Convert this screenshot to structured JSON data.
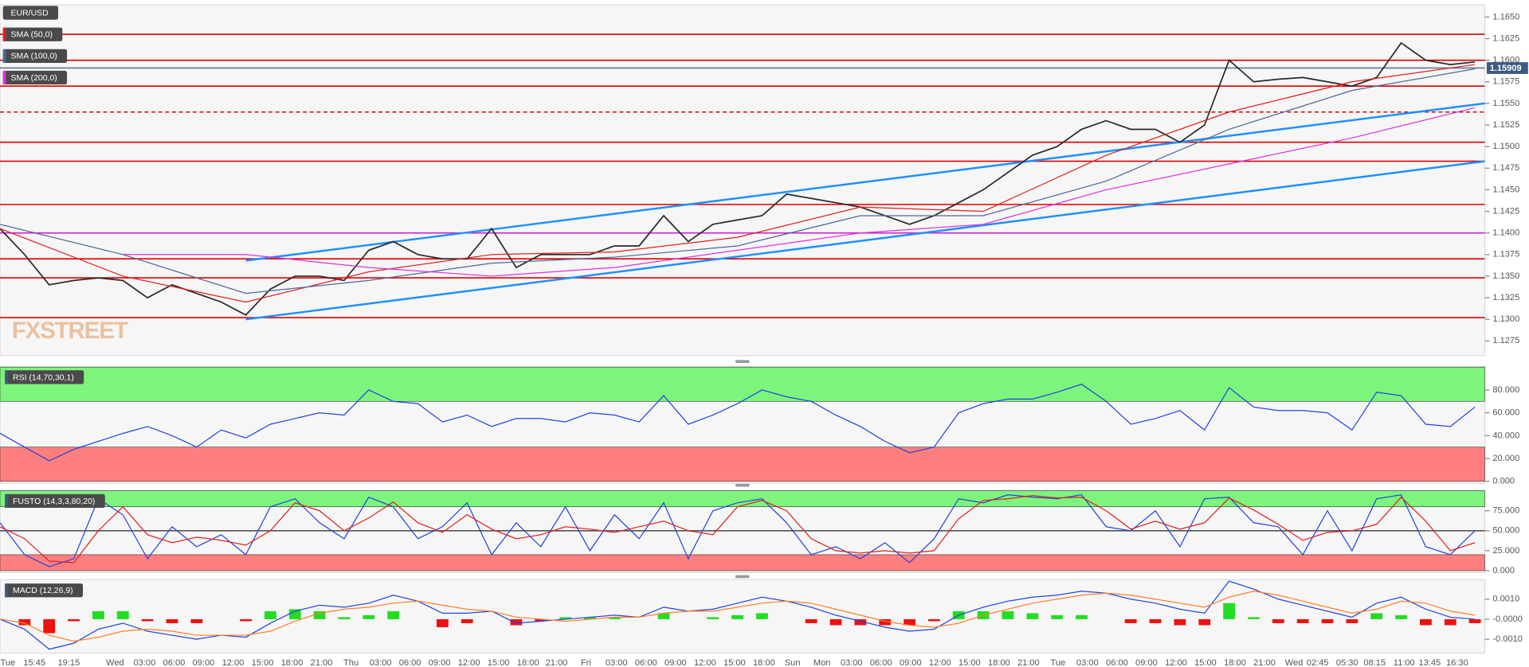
{
  "chart_data": [
    {
      "type": "line",
      "xlim": [
        0,
        60.4
      ],
      "ylim": [
        1.1258,
        1.1664
      ],
      "yticks": [
        1.1275,
        {
          "value": 1.13,
          "label": "1.1300"
        },
        1.1325,
        {
          "value": 1.135,
          "label": "1.1350"
        },
        1.1375,
        {
          "value": 1.14,
          "label": "1.1400"
        },
        1.1425,
        {
          "value": 1.145,
          "label": "1.1450"
        },
        1.1475,
        {
          "value": 1.15,
          "label": "1.1500"
        },
        1.1525,
        {
          "value": 1.155,
          "label": "1.1550"
        },
        1.1575,
        {
          "value": 1.16,
          "label": "1.1600"
        },
        1.1625,
        {
          "value": 1.165,
          "label": "1.1650"
        }
      ],
      "watermark": "FXSTREET",
      "last_price": 1.15909,
      "levels": [
        {
          "value": 1.163,
          "color": "#e00000",
          "dash": false
        },
        {
          "value": 1.16,
          "color": "#e00000",
          "dash": false
        },
        {
          "value": 1.1591,
          "color": "#667788",
          "dash": false
        },
        {
          "value": 1.157,
          "color": "#e00000",
          "dash": false
        },
        {
          "value": 1.154,
          "color": "#e00000",
          "dash": true
        },
        {
          "value": 1.1505,
          "color": "#e00000",
          "dash": false
        },
        {
          "value": 1.1483,
          "color": "#e00000",
          "dash": false
        },
        {
          "value": 1.1433,
          "color": "#e00000",
          "dash": false
        },
        {
          "value": 1.14,
          "color": "#d020d0",
          "dash": false
        },
        {
          "value": 1.137,
          "color": "#e00000",
          "dash": false
        },
        {
          "value": 1.1348,
          "color": "#e00000",
          "dash": false
        },
        {
          "value": 1.1302,
          "color": "#e00000",
          "dash": false
        }
      ],
      "trendlines": [
        {
          "color": "#1e90ff",
          "x": [
            10,
            60.4
          ],
          "y": [
            1.1368,
            1.155
          ]
        },
        {
          "color": "#1e90ff",
          "x": [
            10,
            60.4
          ],
          "y": [
            1.13,
            1.1483
          ]
        }
      ],
      "series": [
        {
          "name": "EUR/USD",
          "color": "#2a2a2a",
          "values": [
            1.1405,
            1.1375,
            1.134,
            1.1345,
            1.1348,
            1.1345,
            1.1325,
            1.134,
            1.133,
            1.132,
            1.1305,
            1.1335,
            1.135,
            1.135,
            1.1345,
            1.138,
            1.139,
            1.1375,
            1.137,
            1.137,
            1.1405,
            1.136,
            1.1375,
            1.1375,
            1.1375,
            1.1385,
            1.1385,
            1.142,
            1.139,
            1.141,
            1.1415,
            1.142,
            1.1445,
            1.144,
            1.1435,
            1.143,
            1.142,
            1.141,
            1.142,
            1.1435,
            1.145,
            1.147,
            1.149,
            1.15,
            1.152,
            1.153,
            1.152,
            1.152,
            1.1505,
            1.1525,
            1.16,
            1.1575,
            1.1578,
            1.158,
            1.1575,
            1.157,
            1.158,
            1.162,
            1.16,
            1.1595,
            1.1598
          ]
        },
        {
          "name": "SMA (50,0)",
          "color": "#e02020",
          "x": [
            0,
            5,
            10,
            15,
            20,
            25,
            30,
            35,
            40,
            45,
            50,
            55,
            60
          ],
          "values": [
            1.1405,
            1.135,
            1.132,
            1.1355,
            1.1375,
            1.1378,
            1.1395,
            1.143,
            1.1425,
            1.149,
            1.154,
            1.1575,
            1.1595
          ]
        },
        {
          "name": "SMA (100,0)",
          "color": "#4a6a9a",
          "x": [
            0,
            5,
            10,
            15,
            20,
            25,
            30,
            35,
            40,
            45,
            50,
            55,
            60
          ],
          "values": [
            1.141,
            1.1375,
            1.133,
            1.1345,
            1.1365,
            1.1372,
            1.1385,
            1.142,
            1.142,
            1.146,
            1.152,
            1.1565,
            1.159
          ]
        },
        {
          "name": "SMA (200,0)",
          "color": "#e030e0",
          "x": [
            0,
            5,
            10,
            15,
            20,
            25,
            30,
            35,
            40,
            45,
            50,
            55,
            60
          ],
          "values": [
            null,
            1.1375,
            1.1375,
            1.136,
            1.135,
            1.136,
            1.138,
            1.14,
            1.141,
            1.145,
            1.148,
            1.151,
            1.1545
          ]
        }
      ]
    },
    {
      "type": "line",
      "title": "RSI (14,70,30,1)",
      "ylim": [
        -1.7,
        100.6
      ],
      "yticks": [
        {
          "value": 0,
          "label": "0.000"
        },
        {
          "value": 20,
          "label": "20.000"
        },
        {
          "value": 40,
          "label": "40.000"
        },
        {
          "value": 60,
          "label": "60.000"
        },
        {
          "value": 80,
          "label": "80.000"
        }
      ],
      "zones": [
        {
          "from": 70,
          "to": 100,
          "color": "#7df57d"
        },
        {
          "from": 0,
          "to": 30,
          "color": "#ff7f7f"
        }
      ],
      "series": [
        {
          "color": "#2244dd",
          "values": [
            42,
            30,
            18,
            28,
            35,
            42,
            48,
            40,
            30,
            45,
            38,
            50,
            55,
            60,
            58,
            80,
            70,
            68,
            52,
            58,
            48,
            55,
            55,
            52,
            60,
            58,
            52,
            75,
            50,
            58,
            68,
            80,
            74,
            70,
            58,
            48,
            35,
            25,
            30,
            60,
            68,
            72,
            72,
            78,
            85,
            70,
            50,
            55,
            62,
            45,
            82,
            65,
            62,
            62,
            60,
            45,
            78,
            75,
            50,
            48,
            65
          ]
        }
      ]
    },
    {
      "type": "line",
      "title": "FUSTO (14,3,3,80,20)",
      "ylim": [
        -2.5,
        100.8
      ],
      "yticks": [
        {
          "value": 0,
          "label": "0.000"
        },
        {
          "value": 25,
          "label": "25.000"
        },
        {
          "value": 50,
          "label": "50.000"
        },
        {
          "value": 75,
          "label": "75.000"
        }
      ],
      "zones": [
        {
          "from": 80,
          "to": 100,
          "color": "#7df57d"
        },
        {
          "from": 0,
          "to": 20,
          "color": "#ff7f7f"
        }
      ],
      "levels": [
        {
          "value": 50,
          "color": "#555555",
          "dash": false
        }
      ],
      "series": [
        {
          "color": "#2244dd",
          "values": [
            60,
            20,
            5,
            15,
            90,
            70,
            15,
            55,
            30,
            45,
            20,
            80,
            90,
            60,
            40,
            92,
            80,
            40,
            55,
            85,
            20,
            60,
            30,
            80,
            25,
            70,
            40,
            85,
            15,
            75,
            85,
            90,
            60,
            20,
            30,
            15,
            35,
            10,
            40,
            90,
            85,
            95,
            92,
            90,
            95,
            55,
            50,
            75,
            30,
            90,
            92,
            60,
            55,
            20,
            75,
            25,
            90,
            95,
            30,
            20,
            50
          ]
        },
        {
          "color": "#e02020",
          "values": [
            55,
            40,
            12,
            10,
            50,
            80,
            45,
            35,
            42,
            38,
            32,
            50,
            85,
            75,
            50,
            66,
            86,
            60,
            48,
            70,
            52,
            40,
            45,
            55,
            52,
            48,
            55,
            62,
            50,
            45,
            80,
            88,
            75,
            40,
            25,
            22,
            25,
            22,
            25,
            65,
            88,
            90,
            94,
            91,
            92,
            75,
            52,
            62,
            52,
            60,
            91,
            76,
            58,
            38,
            48,
            50,
            58,
            92,
            62,
            25,
            35
          ]
        }
      ]
    },
    {
      "type": "line",
      "title": "MACD (12,26,9)",
      "ylim": [
        -0.0017,
        0.00198
      ],
      "yticks": [
        {
          "value": 0.001,
          "label": "0.0010"
        },
        {
          "value": 0,
          "label": "-0.0000"
        },
        {
          "value": -0.001,
          "label": "-0.0010"
        }
      ],
      "xticks": [
        {
          "value": 0.32,
          "label": "Tue"
        },
        {
          "value": 1.4,
          "label": "15:45"
        },
        {
          "value": 2.8,
          "label": "19:15"
        },
        {
          "value": 4.68,
          "label": "Wed"
        },
        {
          "value": 5.88,
          "label": "03:00"
        },
        {
          "value": 7.08,
          "label": "06:00"
        },
        {
          "value": 8.28,
          "label": "09:00"
        },
        {
          "value": 9.48,
          "label": "12:00"
        },
        {
          "value": 10.68,
          "label": "15:00"
        },
        {
          "value": 11.88,
          "label": "18:00"
        },
        {
          "value": 13.08,
          "label": "21:00"
        },
        {
          "value": 14.28,
          "label": "Thu"
        },
        {
          "value": 15.48,
          "label": "03:00"
        },
        {
          "value": 16.68,
          "label": "06:00"
        },
        {
          "value": 17.88,
          "label": "09:00"
        },
        {
          "value": 19.08,
          "label": "12:00"
        },
        {
          "value": 20.28,
          "label": "15:00"
        },
        {
          "value": 21.48,
          "label": "18:00"
        },
        {
          "value": 22.64,
          "label": "21:00"
        },
        {
          "value": 23.84,
          "label": "Fri"
        },
        {
          "value": 25.08,
          "label": "03:00"
        },
        {
          "value": 26.28,
          "label": "06:00"
        },
        {
          "value": 27.48,
          "label": "09:00"
        },
        {
          "value": 28.68,
          "label": "12:00"
        },
        {
          "value": 29.88,
          "label": "15:00"
        },
        {
          "value": 31.08,
          "label": "18:00"
        },
        {
          "value": 32.24,
          "label": "Sun"
        },
        {
          "value": 33.44,
          "label": "Mon"
        },
        {
          "value": 34.64,
          "label": "03:00"
        },
        {
          "value": 35.84,
          "label": "06:00"
        },
        {
          "value": 37.04,
          "label": "09:00"
        },
        {
          "value": 38.24,
          "label": "12:00"
        },
        {
          "value": 39.44,
          "label": "15:00"
        },
        {
          "value": 40.64,
          "label": "18:00"
        },
        {
          "value": 41.84,
          "label": "21:00"
        },
        {
          "value": 43.04,
          "label": "Tue"
        },
        {
          "value": 44.24,
          "label": "03:00"
        },
        {
          "value": 45.44,
          "label": "06:00"
        },
        {
          "value": 46.64,
          "label": "09:00"
        },
        {
          "value": 47.84,
          "label": "12:00"
        },
        {
          "value": 49.04,
          "label": "15:00"
        },
        {
          "value": 50.24,
          "label": "18:00"
        },
        {
          "value": 51.44,
          "label": "21:00"
        },
        {
          "value": 52.64,
          "label": "Wed"
        },
        {
          "value": 53.6,
          "label": "02:45"
        },
        {
          "value": 54.8,
          "label": "05:30"
        },
        {
          "value": 55.92,
          "label": "08:15"
        },
        {
          "value": 57.12,
          "label": "11:00"
        },
        {
          "value": 58.16,
          "label": "13:45"
        },
        {
          "value": 59.28,
          "label": "16:30"
        }
      ],
      "up_color": "#22dd22",
      "down_color": "#ee1111",
      "series": [
        {
          "type": "bar",
          "values": [
            0,
            -0.0003,
            -0.0007,
            -0.0001,
            0.0004,
            0.0004,
            -0.0001,
            -0.0002,
            -0.0002,
            0,
            -0.0001,
            0.0004,
            0.0005,
            0.0004,
            0.0001,
            0.0002,
            0.0004,
            0,
            -0.0004,
            -0.0002,
            0,
            -0.0003,
            -0.0001,
            0.0001,
            0.0001,
            0.0001,
            0,
            0.0003,
            0,
            0.0001,
            0.0002,
            0.0003,
            0,
            -0.0002,
            -0.0003,
            -0.0003,
            -0.0003,
            -0.0003,
            -0.0001,
            0.0004,
            0.0004,
            0.0004,
            0.0003,
            0.0002,
            0.0002,
            0,
            -0.0002,
            -0.0002,
            -0.0003,
            -0.0003,
            0.0008,
            0.0001,
            -0.0002,
            -0.0002,
            -0.0002,
            -0.0002,
            0.0003,
            0.0002,
            -0.0003,
            -0.0003,
            -0.0002
          ]
        },
        {
          "color": "#2244dd",
          "values": [
            0,
            -0.0005,
            -0.0015,
            -0.0012,
            -0.0005,
            -0.0002,
            -0.0006,
            -0.0008,
            -0.001,
            -0.0008,
            -0.0009,
            -0.0002,
            0.0004,
            0.0007,
            0.0006,
            0.0008,
            0.0012,
            0.0009,
            0.0003,
            0.0003,
            0.0004,
            -0.0002,
            -0.0001,
            0,
            0.0001,
            0.0002,
            0.0001,
            0.0006,
            0.0004,
            0.0005,
            0.0008,
            0.0011,
            0.0009,
            0.0006,
            0.0002,
            -0.0001,
            -0.0004,
            -0.0006,
            -0.0005,
            0.0002,
            0.0006,
            0.0009,
            0.0011,
            0.0012,
            0.0014,
            0.0013,
            0.001,
            0.0008,
            0.0005,
            0.0003,
            0.0019,
            0.0015,
            0.001,
            0.0007,
            0.0004,
            0.0001,
            0.0008,
            0.0011,
            0.0005,
            0.0001,
            0
          ]
        },
        {
          "color": "#ff7f27",
          "values": [
            0,
            -0.0002,
            -0.0008,
            -0.0011,
            -0.0009,
            -0.0006,
            -0.0005,
            -0.0006,
            -0.0008,
            -0.0008,
            -0.0008,
            -0.0006,
            -0.0001,
            0.0003,
            0.0005,
            0.0006,
            0.0008,
            0.0009,
            0.0007,
            0.0005,
            0.0004,
            0.0001,
            0,
            -0.0001,
            0,
            0.0001,
            0.0001,
            0.0003,
            0.0004,
            0.0004,
            0.0006,
            0.0008,
            0.0009,
            0.0008,
            0.0005,
            0.0002,
            -0.0001,
            -0.0003,
            -0.0004,
            -0.0002,
            0.0002,
            0.0005,
            0.0008,
            0.001,
            0.0012,
            0.0013,
            0.0012,
            0.001,
            0.0008,
            0.0006,
            0.0011,
            0.0014,
            0.0012,
            0.0009,
            0.0006,
            0.0003,
            0.0005,
            0.0009,
            0.0008,
            0.0004,
            0.0002
          ]
        }
      ]
    }
  ]
}
